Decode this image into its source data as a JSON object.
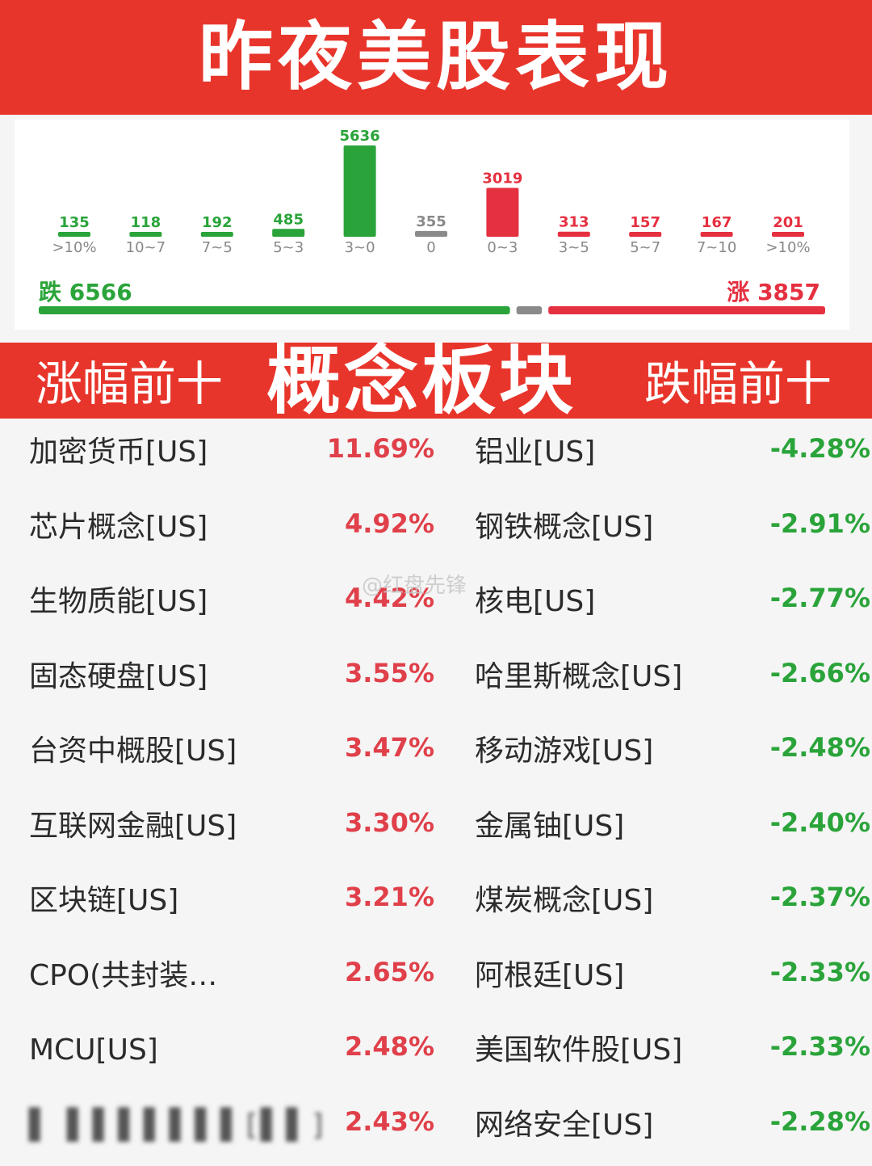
{
  "header": {
    "title": "昨夜美股表现"
  },
  "chart_data": {
    "type": "bar",
    "categories": [
      ">10%",
      "10~7",
      "7~5",
      "5~3",
      "3~0",
      "0",
      "0~3",
      "3~5",
      "5~7",
      "7~10",
      ">10%"
    ],
    "values": [
      135,
      118,
      192,
      485,
      5636,
      355,
      3019,
      313,
      157,
      167,
      201
    ],
    "colors": [
      "#2aa43a",
      "#2aa43a",
      "#2aa43a",
      "#2aa43a",
      "#2aa43a",
      "#8a8a8a",
      "#e53040",
      "#e53040",
      "#e53040",
      "#e53040",
      "#e53040"
    ],
    "ylim": [
      0,
      5636
    ],
    "grid": false
  },
  "summary": {
    "fall_label": "跌",
    "fall_count": "6566",
    "fall_value": 6566,
    "flat_value": 355,
    "rise_label": "涨",
    "rise_count": "3857",
    "rise_value": 3857,
    "fall_color": "#2aa43a",
    "flat_color": "#8a8a8a",
    "rise_color": "#e53040"
  },
  "section": {
    "left_title": "涨幅前十",
    "center_title": "概念板块",
    "right_title": "跌幅前十"
  },
  "gainers": [
    {
      "name": "加密货币[US]",
      "pct": "11.69%"
    },
    {
      "name": "芯片概念[US]",
      "pct": "4.92%"
    },
    {
      "name": "生物质能[US]",
      "pct": "4.42%"
    },
    {
      "name": "固态硬盘[US]",
      "pct": "3.55%"
    },
    {
      "name": "台资中概股[US]",
      "pct": "3.47%"
    },
    {
      "name": "互联网金融[US]",
      "pct": "3.30%"
    },
    {
      "name": "区块链[US]",
      "pct": "3.21%"
    },
    {
      "name": "CPO(共封装…",
      "pct": "2.65%"
    },
    {
      "name": "MCU[US]",
      "pct": "2.48%"
    },
    {
      "name": "",
      "pct": "2.43%"
    }
  ],
  "losers": [
    {
      "name": "铝业[US]",
      "pct": "-4.28%"
    },
    {
      "name": "钢铁概念[US]",
      "pct": "-2.91%"
    },
    {
      "name": "核电[US]",
      "pct": "-2.77%"
    },
    {
      "name": "哈里斯概念[US]",
      "pct": "-2.66%"
    },
    {
      "name": "移动游戏[US]",
      "pct": "-2.48%"
    },
    {
      "name": "金属铀[US]",
      "pct": "-2.40%"
    },
    {
      "name": "煤炭概念[US]",
      "pct": "-2.37%"
    },
    {
      "name": "阿根廷[US]",
      "pct": "-2.33%"
    },
    {
      "name": "美国软件股[US]",
      "pct": "-2.33%"
    },
    {
      "name": "网络安全[US]",
      "pct": "-2.28%"
    }
  ],
  "watermark": "@红盘先锋"
}
